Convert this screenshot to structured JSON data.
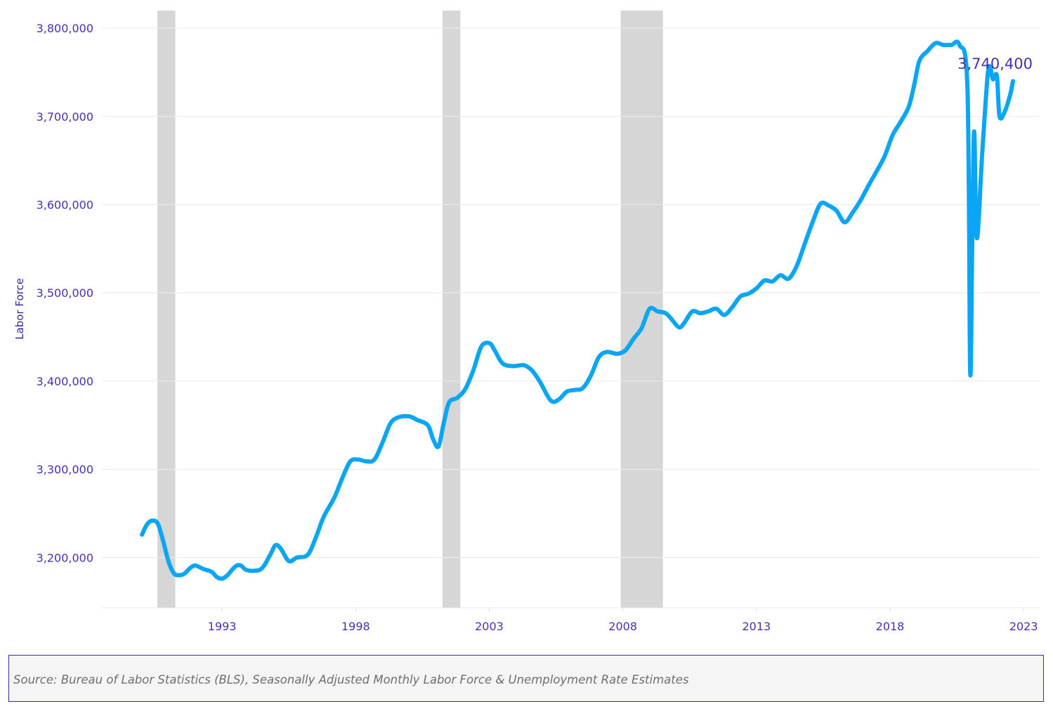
{
  "chart_data": {
    "type": "line",
    "ylabel": "Labor Force",
    "xlabel": "",
    "ylim": [
      3143000,
      3820000
    ],
    "xlim": [
      1988.5,
      2023.6
    ],
    "y_ticks": [
      3200000,
      3300000,
      3400000,
      3500000,
      3600000,
      3700000,
      3800000
    ],
    "y_tick_labels": [
      "3,200,000",
      "3,300,000",
      "3,400,000",
      "3,500,000",
      "3,600,000",
      "3,700,000",
      "3,800,000"
    ],
    "x_ticks": [
      1993,
      1998,
      2003,
      2008,
      2013,
      2018,
      2023
    ],
    "x_tick_labels": [
      "1993",
      "1998",
      "2003",
      "2008",
      "2013",
      "2018",
      "2023"
    ],
    "recessions": [
      [
        1990.58,
        1991.25
      ],
      [
        2001.25,
        2001.92
      ],
      [
        2007.92,
        2009.5
      ]
    ],
    "grid": true,
    "last_value_label": "3,740,400",
    "series": [
      {
        "color": "#0aa6f5",
        "points": [
          [
            1990.0,
            3226000
          ],
          [
            1990.2,
            3238000
          ],
          [
            1990.4,
            3242000
          ],
          [
            1990.6,
            3238000
          ],
          [
            1990.8,
            3218000
          ],
          [
            1991.0,
            3195000
          ],
          [
            1991.2,
            3182000
          ],
          [
            1991.4,
            3180000
          ],
          [
            1991.6,
            3182000
          ],
          [
            1991.8,
            3188000
          ],
          [
            1992.0,
            3191000
          ],
          [
            1992.3,
            3187000
          ],
          [
            1992.6,
            3184000
          ],
          [
            1992.8,
            3178000
          ],
          [
            1993.0,
            3176000
          ],
          [
            1993.2,
            3180000
          ],
          [
            1993.5,
            3190000
          ],
          [
            1993.7,
            3191000
          ],
          [
            1993.9,
            3186000
          ],
          [
            1994.2,
            3185000
          ],
          [
            1994.5,
            3188000
          ],
          [
            1994.8,
            3203000
          ],
          [
            1995.0,
            3214000
          ],
          [
            1995.2,
            3210000
          ],
          [
            1995.5,
            3196000
          ],
          [
            1995.8,
            3200000
          ],
          [
            1996.2,
            3203000
          ],
          [
            1996.5,
            3222000
          ],
          [
            1996.8,
            3246000
          ],
          [
            1997.2,
            3268000
          ],
          [
            1997.5,
            3290000
          ],
          [
            1997.8,
            3309000
          ],
          [
            1998.1,
            3311000
          ],
          [
            1998.4,
            3309000
          ],
          [
            1998.7,
            3311000
          ],
          [
            1999.0,
            3330000
          ],
          [
            1999.3,
            3352000
          ],
          [
            1999.6,
            3359000
          ],
          [
            2000.0,
            3360000
          ],
          [
            2000.3,
            3356000
          ],
          [
            2000.7,
            3350000
          ],
          [
            2000.9,
            3334000
          ],
          [
            2001.1,
            3326000
          ],
          [
            2001.3,
            3353000
          ],
          [
            2001.5,
            3376000
          ],
          [
            2001.8,
            3381000
          ],
          [
            2002.1,
            3391000
          ],
          [
            2002.4,
            3412000
          ],
          [
            2002.7,
            3439000
          ],
          [
            2003.0,
            3443000
          ],
          [
            2003.2,
            3435000
          ],
          [
            2003.5,
            3420000
          ],
          [
            2003.9,
            3417000
          ],
          [
            2004.3,
            3418000
          ],
          [
            2004.6,
            3412000
          ],
          [
            2004.9,
            3399000
          ],
          [
            2005.3,
            3378000
          ],
          [
            2005.6,
            3379000
          ],
          [
            2005.9,
            3388000
          ],
          [
            2006.2,
            3390000
          ],
          [
            2006.5,
            3392000
          ],
          [
            2006.8,
            3406000
          ],
          [
            2007.1,
            3427000
          ],
          [
            2007.4,
            3433000
          ],
          [
            2007.8,
            3431000
          ],
          [
            2008.1,
            3435000
          ],
          [
            2008.4,
            3448000
          ],
          [
            2008.7,
            3460000
          ],
          [
            2009.0,
            3482000
          ],
          [
            2009.3,
            3479000
          ],
          [
            2009.6,
            3477000
          ],
          [
            2009.8,
            3471000
          ],
          [
            2010.1,
            3461000
          ],
          [
            2010.3,
            3466000
          ],
          [
            2010.6,
            3479000
          ],
          [
            2010.9,
            3477000
          ],
          [
            2011.2,
            3479000
          ],
          [
            2011.5,
            3482000
          ],
          [
            2011.8,
            3475000
          ],
          [
            2012.1,
            3484000
          ],
          [
            2012.4,
            3496000
          ],
          [
            2012.7,
            3499000
          ],
          [
            2013.0,
            3505000
          ],
          [
            2013.3,
            3514000
          ],
          [
            2013.6,
            3513000
          ],
          [
            2013.9,
            3520000
          ],
          [
            2014.2,
            3516000
          ],
          [
            2014.5,
            3530000
          ],
          [
            2014.8,
            3555000
          ],
          [
            2015.1,
            3580000
          ],
          [
            2015.4,
            3601000
          ],
          [
            2015.7,
            3599000
          ],
          [
            2016.0,
            3593000
          ],
          [
            2016.3,
            3580000
          ],
          [
            2016.6,
            3591000
          ],
          [
            2016.9,
            3605000
          ],
          [
            2017.2,
            3622000
          ],
          [
            2017.5,
            3638000
          ],
          [
            2017.8,
            3655000
          ],
          [
            2018.1,
            3679000
          ],
          [
            2018.4,
            3694000
          ],
          [
            2018.7,
            3711000
          ],
          [
            2018.9,
            3735000
          ],
          [
            2019.1,
            3763000
          ],
          [
            2019.4,
            3774000
          ],
          [
            2019.7,
            3783000
          ],
          [
            2020.0,
            3781000
          ],
          [
            2020.3,
            3781000
          ],
          [
            2020.6,
            3781000
          ],
          [
            2020.9,
            3730000
          ],
          [
            2021.0,
            3410000
          ],
          [
            2021.08,
            3565000
          ],
          [
            2021.15,
            3683000
          ],
          [
            2021.25,
            3562000
          ],
          [
            2021.45,
            3658000
          ],
          [
            2021.65,
            3745000
          ],
          [
            2021.75,
            3756000
          ],
          [
            2021.85,
            3742000
          ],
          [
            2022.0,
            3746000
          ],
          [
            2022.1,
            3700000
          ],
          [
            2022.3,
            3706000
          ],
          [
            2022.5,
            3725000
          ],
          [
            2022.6,
            3740000
          ]
        ]
      }
    ]
  },
  "footer": {
    "source_text": "Source: Bureau of Labor Statistics (BLS), Seasonally Adjusted Monthly Labor Force & Unemployment Rate Estimates"
  }
}
